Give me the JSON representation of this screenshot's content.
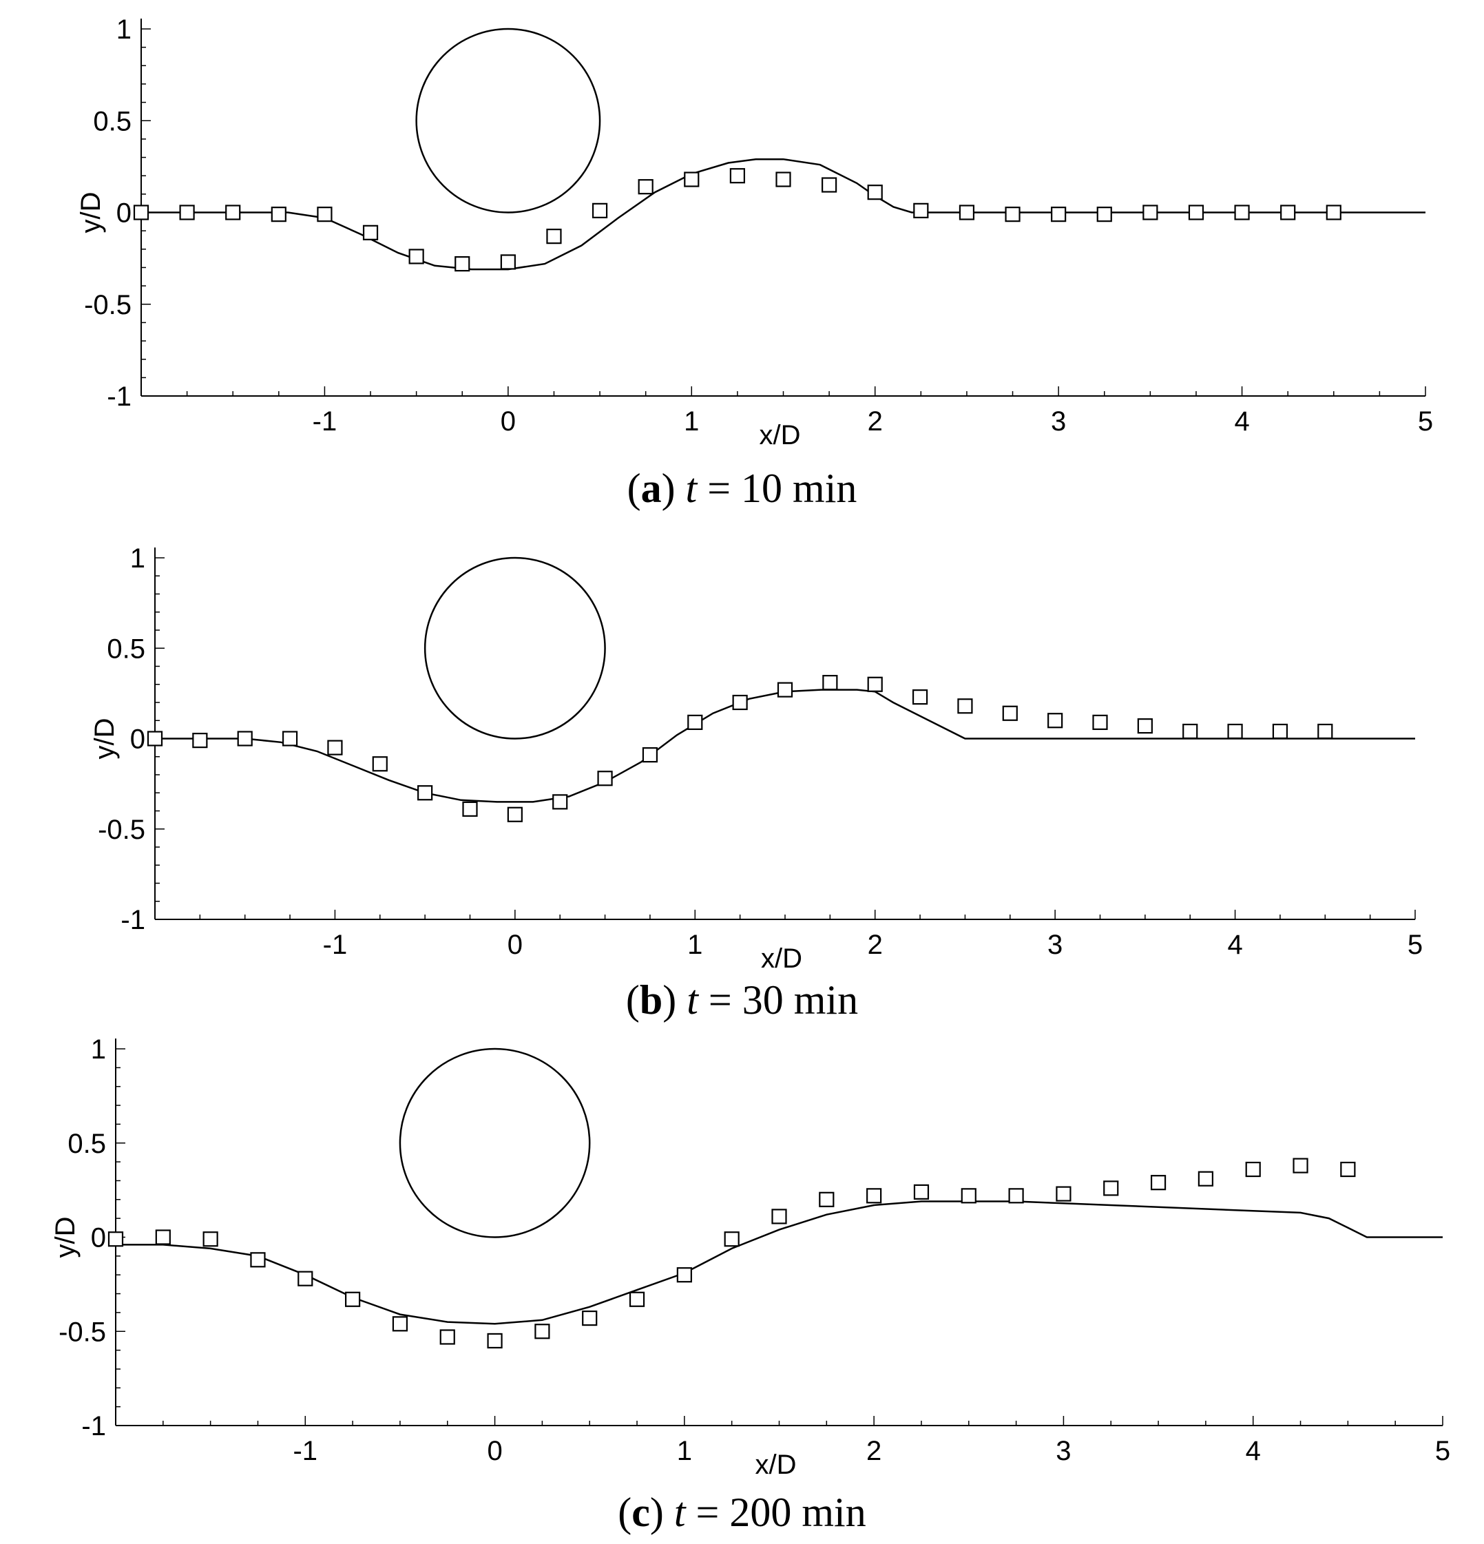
{
  "chart_data": [
    {
      "type": "line",
      "caption": {
        "letter": "a",
        "var": "t",
        "text": " = 10 min"
      },
      "xlabel": "x/D",
      "ylabel": "y/D",
      "xlim": [
        -2,
        5
      ],
      "ylim": [
        -1,
        1
      ],
      "xticks": [
        "-1",
        "0",
        "1",
        "2",
        "3",
        "4",
        "5"
      ],
      "yticks": [
        "1",
        "0.5",
        "0",
        "-0.5",
        "-1"
      ],
      "cylinder": {
        "cx": 0,
        "cy": 0.5,
        "r": 0.5
      },
      "series": [
        {
          "kind": "line",
          "x": [
            -2,
            -1.5,
            -1.2,
            -1,
            -0.8,
            -0.6,
            -0.4,
            -0.2,
            0,
            0.2,
            0.4,
            0.6,
            0.8,
            1.0,
            1.2,
            1.35,
            1.5,
            1.7,
            1.9,
            2.0,
            2.1,
            2.2,
            2.5,
            3,
            3.5,
            4,
            4.5,
            5
          ],
          "y": [
            0,
            0,
            0,
            -0.03,
            -0.12,
            -0.22,
            -0.29,
            -0.31,
            -0.31,
            -0.28,
            -0.18,
            -0.03,
            0.11,
            0.21,
            0.27,
            0.29,
            0.29,
            0.26,
            0.16,
            0.09,
            0.03,
            0,
            0,
            0,
            0,
            0,
            0,
            0
          ]
        },
        {
          "kind": "markers",
          "x": [
            -2,
            -1.75,
            -1.5,
            -1.25,
            -1,
            -0.75,
            -0.5,
            -0.25,
            0,
            0.25,
            0.5,
            0.75,
            1,
            1.25,
            1.5,
            1.75,
            2,
            2.25,
            2.5,
            2.75,
            3,
            3.25,
            3.5,
            3.75,
            4,
            4.25,
            4.5
          ],
          "y": [
            0,
            0,
            0,
            -0.01,
            -0.01,
            -0.11,
            -0.24,
            -0.28,
            -0.27,
            -0.13,
            0.01,
            0.14,
            0.18,
            0.2,
            0.18,
            0.15,
            0.11,
            0.01,
            0,
            -0.01,
            -0.01,
            -0.01,
            0,
            0,
            0,
            0,
            0
          ]
        }
      ]
    },
    {
      "type": "line",
      "caption": {
        "letter": "b",
        "var": "t",
        "text": " = 30 min"
      },
      "xlabel": "x/D",
      "ylabel": "y/D",
      "xlim": [
        -2,
        5
      ],
      "ylim": [
        -1,
        1
      ],
      "xticks": [
        "-1",
        "0",
        "1",
        "2",
        "3",
        "4",
        "5"
      ],
      "yticks": [
        "1",
        "0.5",
        "0",
        "-0.5",
        "-1"
      ],
      "cylinder": {
        "cx": 0,
        "cy": 0.5,
        "r": 0.5
      },
      "series": [
        {
          "kind": "line",
          "x": [
            -2,
            -1.5,
            -1.3,
            -1.1,
            -0.9,
            -0.7,
            -0.5,
            -0.3,
            -0.1,
            0.1,
            0.3,
            0.5,
            0.7,
            0.9,
            1.1,
            1.3,
            1.5,
            1.7,
            1.9,
            2.0,
            2.1,
            2.3,
            2.5,
            3,
            3.5,
            4,
            4.5,
            5
          ],
          "y": [
            0,
            0,
            -0.02,
            -0.07,
            -0.15,
            -0.23,
            -0.3,
            -0.34,
            -0.35,
            -0.35,
            -0.32,
            -0.24,
            -0.13,
            0.02,
            0.14,
            0.22,
            0.26,
            0.27,
            0.27,
            0.26,
            0.2,
            0.1,
            0,
            0,
            0,
            0,
            0,
            0
          ]
        },
        {
          "kind": "markers",
          "x": [
            -2,
            -1.75,
            -1.5,
            -1.25,
            -1,
            -0.75,
            -0.5,
            -0.25,
            0,
            0.25,
            0.5,
            0.75,
            1,
            1.25,
            1.5,
            1.75,
            2,
            2.25,
            2.5,
            2.75,
            3,
            3.25,
            3.5,
            3.75,
            4,
            4.25,
            4.5
          ],
          "y": [
            0,
            -0.01,
            0,
            0,
            -0.05,
            -0.14,
            -0.3,
            -0.39,
            -0.42,
            -0.35,
            -0.22,
            -0.09,
            0.09,
            0.2,
            0.27,
            0.31,
            0.3,
            0.23,
            0.18,
            0.14,
            0.1,
            0.09,
            0.07,
            0.04,
            0.04,
            0.04,
            0.04
          ]
        }
      ]
    },
    {
      "type": "line",
      "caption": {
        "letter": "c",
        "var": "t",
        "text": " = 200 min"
      },
      "xlabel": "x/D",
      "ylabel": "y/D",
      "xlim": [
        -2,
        5
      ],
      "ylim": [
        -1,
        1
      ],
      "xticks": [
        "-1",
        "0",
        "1",
        "2",
        "3",
        "4",
        "5"
      ],
      "yticks": [
        "1",
        "0.5",
        "0",
        "-0.5",
        "-1"
      ],
      "cylinder": {
        "cx": 0,
        "cy": 0.5,
        "r": 0.5
      },
      "series": [
        {
          "kind": "line",
          "x": [
            -2,
            -1.75,
            -1.5,
            -1.25,
            -1,
            -0.75,
            -0.5,
            -0.25,
            0,
            0.25,
            0.5,
            0.75,
            1,
            1.25,
            1.5,
            1.75,
            2,
            2.25,
            2.5,
            2.75,
            3,
            3.25,
            3.5,
            3.75,
            4,
            4.25,
            4.4,
            4.5,
            4.6,
            4.8,
            5
          ],
          "y": [
            -0.04,
            -0.04,
            -0.06,
            -0.1,
            -0.2,
            -0.32,
            -0.41,
            -0.45,
            -0.46,
            -0.44,
            -0.37,
            -0.28,
            -0.19,
            -0.06,
            0.04,
            0.12,
            0.17,
            0.19,
            0.19,
            0.19,
            0.18,
            0.17,
            0.16,
            0.15,
            0.14,
            0.13,
            0.1,
            0.05,
            0,
            0,
            0
          ]
        },
        {
          "kind": "markers",
          "x": [
            -2,
            -1.75,
            -1.5,
            -1.25,
            -1,
            -0.75,
            -0.5,
            -0.25,
            0,
            0.25,
            0.5,
            0.75,
            1,
            1.25,
            1.5,
            1.75,
            2,
            2.25,
            2.5,
            2.75,
            3,
            3.25,
            3.5,
            3.75,
            4,
            4.25,
            4.5
          ],
          "y": [
            -0.01,
            0,
            -0.01,
            -0.12,
            -0.22,
            -0.33,
            -0.46,
            -0.53,
            -0.55,
            -0.5,
            -0.43,
            -0.33,
            -0.2,
            -0.01,
            0.11,
            0.2,
            0.22,
            0.24,
            0.22,
            0.22,
            0.23,
            0.26,
            0.29,
            0.31,
            0.36,
            0.38,
            0.36
          ]
        }
      ]
    }
  ]
}
